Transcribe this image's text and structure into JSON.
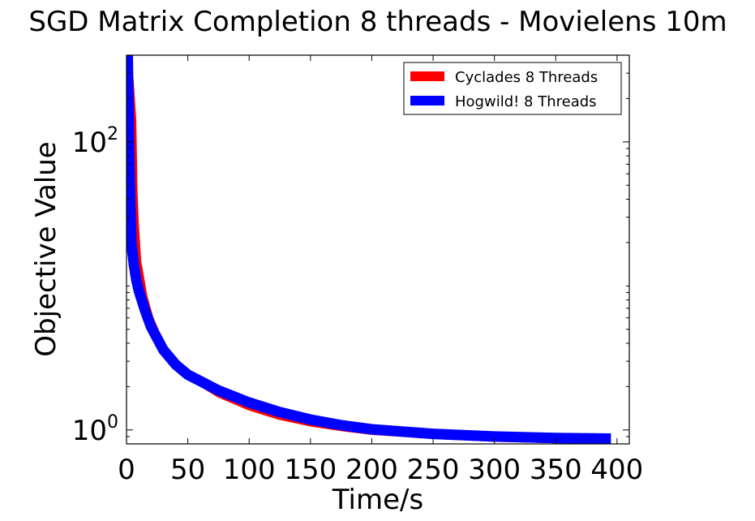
{
  "chart_data": {
    "type": "line",
    "title": "SGD Matrix Completion 8 threads - Movielens 10m",
    "xlabel": "Time/s",
    "ylabel": "Objective Value",
    "xlim": [
      0,
      410
    ],
    "ylim": [
      0.8,
      400
    ],
    "yscale": "log",
    "grid": false,
    "legend_position": "top-right",
    "xticks": [
      "0",
      "50",
      "100",
      "150",
      "200",
      "250",
      "300",
      "350",
      "400"
    ],
    "yticks": [
      {
        "value": 1,
        "base": "10",
        "exp": "0"
      },
      {
        "value": 100,
        "base": "10",
        "exp": "2"
      }
    ],
    "series": [
      {
        "name": "Cyclades 8 Threads",
        "color": "#ff0000",
        "x": [
          2,
          4,
          6,
          7,
          8,
          10,
          15,
          20,
          30,
          40,
          50,
          75,
          100,
          125,
          150,
          175,
          200,
          250,
          300,
          350,
          395
        ],
        "y": [
          400,
          260,
          140,
          45,
          28,
          15,
          8.5,
          6,
          3.8,
          2.9,
          2.35,
          1.75,
          1.42,
          1.22,
          1.1,
          1.02,
          0.96,
          0.9,
          0.86,
          0.84,
          0.83
        ]
      },
      {
        "name": "Hogwild! 8 Threads",
        "color": "#0000ff",
        "x": [
          1,
          2,
          3,
          4,
          6,
          8,
          10,
          15,
          20,
          30,
          40,
          50,
          75,
          100,
          125,
          150,
          175,
          200,
          250,
          300,
          350,
          395
        ],
        "y": [
          400,
          100,
          40,
          20,
          14,
          11,
          9.3,
          6.8,
          5.2,
          3.6,
          2.85,
          2.42,
          1.88,
          1.55,
          1.33,
          1.18,
          1.08,
          1.01,
          0.94,
          0.9,
          0.88,
          0.87
        ]
      }
    ]
  }
}
